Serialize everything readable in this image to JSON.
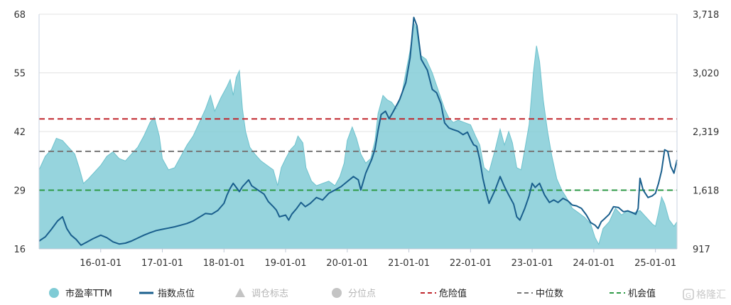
{
  "chart_data": {
    "type": "line",
    "y_left_ticks": [
      "68",
      "55",
      "42",
      "29",
      "16"
    ],
    "y_left_range": [
      16,
      68
    ],
    "y_right_ticks": [
      "3,718",
      "3,020",
      "2,319",
      "1,618",
      "917"
    ],
    "y_right_range": [
      917,
      3718
    ],
    "x_ticks": [
      "16-01-01",
      "17-01-01",
      "18-01-01",
      "19-01-01",
      "20-01-01",
      "21-01-01",
      "22-01-01",
      "23-01-01",
      "24-01-01",
      "25-01-01"
    ],
    "x_range": [
      2015.0,
      2025.35
    ],
    "reference_lines": [
      {
        "name": "危险值",
        "value": 44.8,
        "color": "#c0272d"
      },
      {
        "name": "中位数",
        "value": 37.6,
        "color": "#777777"
      },
      {
        "name": "机会值",
        "value": 29.0,
        "color": "#2e9a47"
      }
    ],
    "series": [
      {
        "name": "市盈率TTM",
        "axis": "left",
        "kind": "area",
        "color": "#7fcbd5",
        "points": [
          [
            2015.0,
            33.5
          ],
          [
            2015.1,
            36.5
          ],
          [
            2015.2,
            38.0
          ],
          [
            2015.28,
            40.5
          ],
          [
            2015.38,
            40.0
          ],
          [
            2015.48,
            38.5
          ],
          [
            2015.58,
            37.0
          ],
          [
            2015.65,
            34.0
          ],
          [
            2015.72,
            30.5
          ],
          [
            2015.8,
            31.5
          ],
          [
            2015.9,
            33.0
          ],
          [
            2016.0,
            34.5
          ],
          [
            2016.1,
            36.5
          ],
          [
            2016.2,
            37.5
          ],
          [
            2016.3,
            36.0
          ],
          [
            2016.4,
            35.5
          ],
          [
            2016.5,
            37.0
          ],
          [
            2016.6,
            38.5
          ],
          [
            2016.7,
            41.0
          ],
          [
            2016.8,
            44.0
          ],
          [
            2016.87,
            45.2
          ],
          [
            2016.95,
            41.0
          ],
          [
            2017.0,
            36.0
          ],
          [
            2017.1,
            33.5
          ],
          [
            2017.2,
            34.0
          ],
          [
            2017.3,
            36.5
          ],
          [
            2017.4,
            39.0
          ],
          [
            2017.5,
            41.0
          ],
          [
            2017.6,
            44.0
          ],
          [
            2017.7,
            47.0
          ],
          [
            2017.78,
            50.0
          ],
          [
            2017.85,
            46.5
          ],
          [
            2017.95,
            49.5
          ],
          [
            2018.05,
            52.0
          ],
          [
            2018.1,
            53.5
          ],
          [
            2018.15,
            50.0
          ],
          [
            2018.2,
            54.0
          ],
          [
            2018.25,
            55.5
          ],
          [
            2018.3,
            47.0
          ],
          [
            2018.35,
            42.0
          ],
          [
            2018.42,
            38.5
          ],
          [
            2018.5,
            37.0
          ],
          [
            2018.6,
            35.5
          ],
          [
            2018.7,
            34.5
          ],
          [
            2018.8,
            33.5
          ],
          [
            2018.87,
            30.0
          ],
          [
            2018.93,
            34.0
          ],
          [
            2019.0,
            36.0
          ],
          [
            2019.08,
            38.0
          ],
          [
            2019.15,
            39.0
          ],
          [
            2019.2,
            41.0
          ],
          [
            2019.28,
            39.5
          ],
          [
            2019.33,
            34.0
          ],
          [
            2019.42,
            31.0
          ],
          [
            2019.5,
            30.0
          ],
          [
            2019.6,
            30.5
          ],
          [
            2019.7,
            31.0
          ],
          [
            2019.8,
            30.0
          ],
          [
            2019.88,
            32.0
          ],
          [
            2019.95,
            35.0
          ],
          [
            2020.0,
            40.0
          ],
          [
            2020.08,
            43.0
          ],
          [
            2020.15,
            40.5
          ],
          [
            2020.22,
            37.0
          ],
          [
            2020.3,
            35.0
          ],
          [
            2020.38,
            36.0
          ],
          [
            2020.45,
            40.0
          ],
          [
            2020.5,
            46.0
          ],
          [
            2020.58,
            50.0
          ],
          [
            2020.65,
            49.0
          ],
          [
            2020.72,
            48.5
          ],
          [
            2020.8,
            47.0
          ],
          [
            2020.88,
            50.0
          ],
          [
            2020.95,
            55.0
          ],
          [
            2021.02,
            60.0
          ],
          [
            2021.08,
            66.0
          ],
          [
            2021.12,
            65.0
          ],
          [
            2021.18,
            59.0
          ],
          [
            2021.28,
            58.0
          ],
          [
            2021.38,
            55.0
          ],
          [
            2021.48,
            51.0
          ],
          [
            2021.58,
            47.0
          ],
          [
            2021.65,
            45.0
          ],
          [
            2021.72,
            44.0
          ],
          [
            2021.8,
            44.5
          ],
          [
            2021.9,
            44.0
          ],
          [
            2022.0,
            43.5
          ],
          [
            2022.08,
            41.0
          ],
          [
            2022.15,
            39.0
          ],
          [
            2022.22,
            34.0
          ],
          [
            2022.3,
            33.0
          ],
          [
            2022.4,
            38.0
          ],
          [
            2022.48,
            42.5
          ],
          [
            2022.55,
            39.0
          ],
          [
            2022.62,
            42.0
          ],
          [
            2022.68,
            39.5
          ],
          [
            2022.75,
            34.0
          ],
          [
            2022.82,
            33.5
          ],
          [
            2022.88,
            38.0
          ],
          [
            2022.95,
            43.5
          ],
          [
            2023.02,
            55.0
          ],
          [
            2023.07,
            61.0
          ],
          [
            2023.12,
            57.5
          ],
          [
            2023.18,
            49.0
          ],
          [
            2023.25,
            42.0
          ],
          [
            2023.32,
            36.5
          ],
          [
            2023.4,
            31.5
          ],
          [
            2023.48,
            29.0
          ],
          [
            2023.55,
            27.5
          ],
          [
            2023.65,
            25.0
          ],
          [
            2023.75,
            24.0
          ],
          [
            2023.85,
            23.0
          ],
          [
            2023.95,
            21.5
          ],
          [
            2024.02,
            18.5
          ],
          [
            2024.08,
            17.0
          ],
          [
            2024.15,
            20.5
          ],
          [
            2024.25,
            22.0
          ],
          [
            2024.35,
            25.0
          ],
          [
            2024.45,
            23.5
          ],
          [
            2024.55,
            24.5
          ],
          [
            2024.65,
            24.0
          ],
          [
            2024.75,
            24.5
          ],
          [
            2024.85,
            23.0
          ],
          [
            2024.95,
            21.5
          ],
          [
            2025.0,
            21.0
          ],
          [
            2025.05,
            24.0
          ],
          [
            2025.1,
            27.5
          ],
          [
            2025.15,
            26.0
          ],
          [
            2025.22,
            22.5
          ],
          [
            2025.3,
            21.0
          ],
          [
            2025.35,
            22.0
          ]
        ]
      },
      {
        "name": "指数点位",
        "axis": "right",
        "kind": "line",
        "color": "#1a5f8d",
        "points": [
          [
            2015.0,
            1010
          ],
          [
            2015.1,
            1060
          ],
          [
            2015.2,
            1150
          ],
          [
            2015.3,
            1250
          ],
          [
            2015.38,
            1300
          ],
          [
            2015.45,
            1160
          ],
          [
            2015.52,
            1080
          ],
          [
            2015.6,
            1030
          ],
          [
            2015.68,
            960
          ],
          [
            2015.78,
            1000
          ],
          [
            2015.88,
            1040
          ],
          [
            2016.0,
            1080
          ],
          [
            2016.1,
            1050
          ],
          [
            2016.2,
            1000
          ],
          [
            2016.3,
            975
          ],
          [
            2016.4,
            985
          ],
          [
            2016.5,
            1010
          ],
          [
            2016.6,
            1045
          ],
          [
            2016.7,
            1080
          ],
          [
            2016.8,
            1110
          ],
          [
            2016.9,
            1135
          ],
          [
            2017.0,
            1150
          ],
          [
            2017.1,
            1165
          ],
          [
            2017.2,
            1180
          ],
          [
            2017.3,
            1200
          ],
          [
            2017.4,
            1220
          ],
          [
            2017.5,
            1250
          ],
          [
            2017.6,
            1295
          ],
          [
            2017.7,
            1340
          ],
          [
            2017.8,
            1330
          ],
          [
            2017.9,
            1375
          ],
          [
            2018.0,
            1460
          ],
          [
            2018.05,
            1560
          ],
          [
            2018.1,
            1640
          ],
          [
            2018.15,
            1700
          ],
          [
            2018.2,
            1650
          ],
          [
            2018.25,
            1600
          ],
          [
            2018.3,
            1660
          ],
          [
            2018.4,
            1740
          ],
          [
            2018.45,
            1670
          ],
          [
            2018.55,
            1620
          ],
          [
            2018.65,
            1570
          ],
          [
            2018.72,
            1480
          ],
          [
            2018.8,
            1420
          ],
          [
            2018.85,
            1380
          ],
          [
            2018.9,
            1300
          ],
          [
            2019.0,
            1320
          ],
          [
            2019.05,
            1260
          ],
          [
            2019.1,
            1330
          ],
          [
            2019.18,
            1400
          ],
          [
            2019.25,
            1470
          ],
          [
            2019.32,
            1420
          ],
          [
            2019.4,
            1460
          ],
          [
            2019.5,
            1530
          ],
          [
            2019.6,
            1500
          ],
          [
            2019.7,
            1580
          ],
          [
            2019.8,
            1620
          ],
          [
            2019.9,
            1660
          ],
          [
            2020.0,
            1720
          ],
          [
            2020.1,
            1780
          ],
          [
            2020.18,
            1740
          ],
          [
            2020.22,
            1620
          ],
          [
            2020.3,
            1820
          ],
          [
            2020.4,
            1990
          ],
          [
            2020.45,
            2110
          ],
          [
            2020.5,
            2330
          ],
          [
            2020.55,
            2520
          ],
          [
            2020.62,
            2560
          ],
          [
            2020.68,
            2470
          ],
          [
            2020.75,
            2560
          ],
          [
            2020.85,
            2700
          ],
          [
            2020.95,
            2900
          ],
          [
            2021.02,
            3200
          ],
          [
            2021.08,
            3680
          ],
          [
            2021.13,
            3580
          ],
          [
            2021.2,
            3180
          ],
          [
            2021.3,
            3050
          ],
          [
            2021.38,
            2820
          ],
          [
            2021.45,
            2780
          ],
          [
            2021.52,
            2650
          ],
          [
            2021.58,
            2420
          ],
          [
            2021.65,
            2360
          ],
          [
            2021.72,
            2340
          ],
          [
            2021.8,
            2320
          ],
          [
            2021.88,
            2280
          ],
          [
            2021.95,
            2310
          ],
          [
            2022.0,
            2230
          ],
          [
            2022.05,
            2160
          ],
          [
            2022.1,
            2140
          ],
          [
            2022.15,
            1980
          ],
          [
            2022.2,
            1760
          ],
          [
            2022.25,
            1600
          ],
          [
            2022.3,
            1460
          ],
          [
            2022.4,
            1620
          ],
          [
            2022.48,
            1780
          ],
          [
            2022.55,
            1660
          ],
          [
            2022.62,
            1560
          ],
          [
            2022.7,
            1450
          ],
          [
            2022.75,
            1300
          ],
          [
            2022.8,
            1260
          ],
          [
            2022.88,
            1400
          ],
          [
            2022.95,
            1550
          ],
          [
            2023.0,
            1700
          ],
          [
            2023.05,
            1650
          ],
          [
            2023.12,
            1700
          ],
          [
            2023.2,
            1560
          ],
          [
            2023.28,
            1470
          ],
          [
            2023.35,
            1500
          ],
          [
            2023.42,
            1470
          ],
          [
            2023.5,
            1520
          ],
          [
            2023.58,
            1490
          ],
          [
            2023.65,
            1440
          ],
          [
            2023.72,
            1430
          ],
          [
            2023.8,
            1400
          ],
          [
            2023.88,
            1320
          ],
          [
            2023.95,
            1230
          ],
          [
            2024.02,
            1200
          ],
          [
            2024.07,
            1160
          ],
          [
            2024.12,
            1240
          ],
          [
            2024.18,
            1280
          ],
          [
            2024.25,
            1330
          ],
          [
            2024.32,
            1420
          ],
          [
            2024.4,
            1410
          ],
          [
            2024.48,
            1360
          ],
          [
            2024.55,
            1370
          ],
          [
            2024.62,
            1350
          ],
          [
            2024.68,
            1330
          ],
          [
            2024.72,
            1400
          ],
          [
            2024.75,
            1760
          ],
          [
            2024.8,
            1620
          ],
          [
            2024.88,
            1530
          ],
          [
            2024.95,
            1550
          ],
          [
            2025.0,
            1580
          ],
          [
            2025.05,
            1700
          ],
          [
            2025.1,
            1850
          ],
          [
            2025.15,
            2100
          ],
          [
            2025.2,
            2080
          ],
          [
            2025.25,
            1900
          ],
          [
            2025.3,
            1820
          ],
          [
            2025.35,
            1980
          ]
        ]
      }
    ],
    "legend": [
      {
        "label": "市盈率TTM",
        "marker": "circle",
        "color": "#7fcbd5",
        "muted": false
      },
      {
        "label": "指数点位",
        "marker": "line",
        "color": "#1a5f8d",
        "muted": false
      },
      {
        "label": "调仓标志",
        "marker": "triangle",
        "color": "#c4c4c4",
        "muted": true
      },
      {
        "label": "分位点",
        "marker": "circle",
        "color": "#c4c4c4",
        "muted": true
      },
      {
        "label": "危险值",
        "marker": "dashed",
        "color": "#c0272d",
        "muted": false
      },
      {
        "label": "中位数",
        "marker": "dashed",
        "color": "#777777",
        "muted": false
      },
      {
        "label": "机会值",
        "marker": "dashed",
        "color": "#2e9a47",
        "muted": false
      }
    ],
    "legend_position": "bottom",
    "grid": true
  },
  "watermark": {
    "text": "格隆汇",
    "icon": "gelonghui-logo-icon"
  }
}
